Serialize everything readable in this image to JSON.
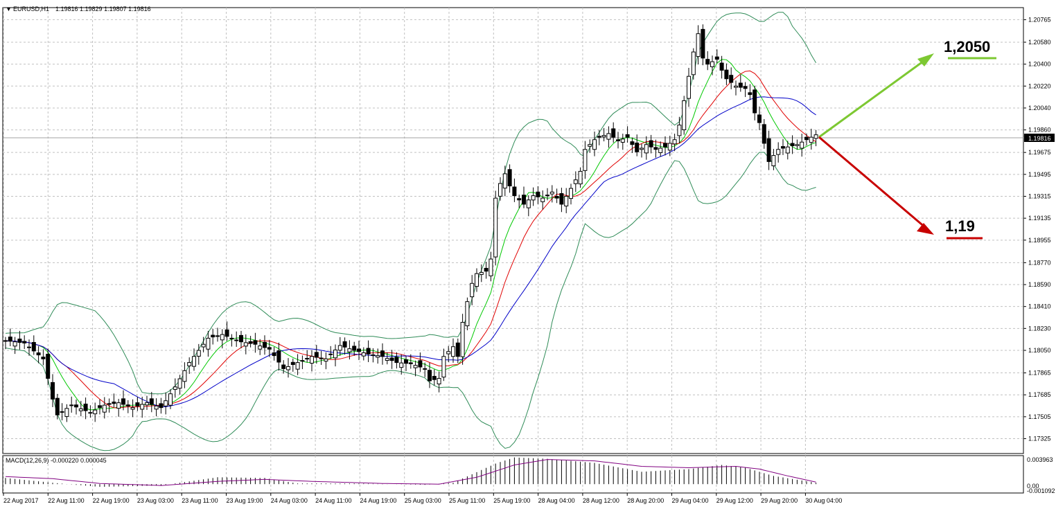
{
  "header": {
    "symbol": "EURUSD,H1",
    "ohlc": "1.19816 1.19829 1.19807 1.19816"
  },
  "current_price": "1.19816",
  "annotations": {
    "up_target": "1,2050",
    "down_target": "1,19"
  },
  "macd": {
    "label": "MACD(12,26,9) -0.000220 0.000045",
    "ticks": [
      "0.003963",
      "0.00",
      "-0.001092"
    ]
  },
  "colors": {
    "candle": "#000000",
    "bollinger": "#2e8b57",
    "ma_green": "#00c800",
    "ma_red": "#e00000",
    "ma_blue": "#0000c8",
    "macd_signal": "#800080",
    "up_arrow": "#7dc832",
    "down_arrow": "#c80000"
  },
  "chart_data": {
    "type": "candlestick",
    "grid": true,
    "ylim": [
      1.1722,
      1.2083
    ],
    "price_ticks": [
      "1.20765",
      "1.20580",
      "1.20400",
      "1.20220",
      "1.20040",
      "1.19860",
      "1.19675",
      "1.19495",
      "1.19315",
      "1.19135",
      "1.18955",
      "1.18770",
      "1.18590",
      "1.18410",
      "1.18230",
      "1.18050",
      "1.17865",
      "1.17685",
      "1.17505",
      "1.17325"
    ],
    "time_ticks": [
      "22 Aug 2017",
      "22 Aug 11:00",
      "22 Aug 19:00",
      "23 Aug 03:00",
      "23 Aug 11:00",
      "23 Aug 19:00",
      "24 Aug 03:00",
      "24 Aug 11:00",
      "24 Aug 19:00",
      "25 Aug 03:00",
      "25 Aug 11:00",
      "25 Aug 19:00",
      "28 Aug 04:00",
      "28 Aug 12:00",
      "28 Aug 20:00",
      "29 Aug 04:00",
      "29 Aug 12:00",
      "29 Aug 20:00",
      "30 Aug 04:00"
    ],
    "anchors": [
      [
        0,
        1.1813
      ],
      [
        4,
        1.1811
      ],
      [
        8,
        1.1798
      ],
      [
        9,
        1.1782
      ],
      [
        10,
        1.1765
      ],
      [
        11,
        1.1752
      ],
      [
        14,
        1.176
      ],
      [
        18,
        1.1754
      ],
      [
        21,
        1.176
      ],
      [
        24,
        1.1762
      ],
      [
        27,
        1.1758
      ],
      [
        30,
        1.1762
      ],
      [
        33,
        1.1758
      ],
      [
        36,
        1.1775
      ],
      [
        39,
        1.1795
      ],
      [
        43,
        1.1815
      ],
      [
        46,
        1.1818
      ],
      [
        50,
        1.1812
      ],
      [
        53,
        1.181
      ],
      [
        56,
        1.1806
      ],
      [
        59,
        1.179
      ],
      [
        62,
        1.1795
      ],
      [
        65,
        1.18
      ],
      [
        68,
        1.1798
      ],
      [
        71,
        1.1809
      ],
      [
        74,
        1.1805
      ],
      [
        77,
        1.1802
      ],
      [
        80,
        1.18
      ],
      [
        83,
        1.1795
      ],
      [
        86,
        1.1794
      ],
      [
        89,
        1.179
      ],
      [
        90,
        1.178
      ],
      [
        92,
        1.1782
      ],
      [
        93,
        1.18
      ],
      [
        95,
        1.1808
      ],
      [
        96,
        1.18
      ],
      [
        97,
        1.1828
      ],
      [
        98,
        1.1845
      ],
      [
        99,
        1.186
      ],
      [
        100,
        1.1868
      ],
      [
        102,
        1.187
      ],
      [
        103,
        1.188
      ],
      [
        104,
        1.193
      ],
      [
        105,
        1.1942
      ],
      [
        106,
        1.195
      ],
      [
        107,
        1.194
      ],
      [
        108,
        1.1932
      ],
      [
        110,
        1.1925
      ],
      [
        112,
        1.1932
      ],
      [
        114,
        1.193
      ],
      [
        116,
        1.1935
      ],
      [
        118,
        1.1925
      ],
      [
        120,
        1.1938
      ],
      [
        122,
        1.1952
      ],
      [
        123,
        1.197
      ],
      [
        125,
        1.1978
      ],
      [
        126,
        1.198
      ],
      [
        128,
        1.1983
      ],
      [
        130,
        1.1977
      ],
      [
        132,
        1.198
      ],
      [
        134,
        1.1968
      ],
      [
        136,
        1.1974
      ],
      [
        138,
        1.197
      ],
      [
        140,
        1.1972
      ],
      [
        142,
        1.1978
      ],
      [
        143,
        1.199
      ],
      [
        144,
        1.201
      ],
      [
        145,
        1.203
      ],
      [
        146,
        1.205
      ],
      [
        147,
        1.2065
      ],
      [
        148,
        1.2045
      ],
      [
        149,
        1.204
      ],
      [
        151,
        1.2044
      ],
      [
        152,
        1.2035
      ],
      [
        153,
        1.2028
      ],
      [
        155,
        1.2022
      ],
      [
        157,
        1.202
      ],
      [
        158,
        1.2015
      ],
      [
        159,
        1.2
      ],
      [
        160,
        1.1992
      ],
      [
        161,
        1.1975
      ],
      [
        162,
        1.196
      ],
      [
        164,
        1.197
      ],
      [
        166,
        1.1972
      ],
      [
        168,
        1.1974
      ],
      [
        170,
        1.1978
      ],
      [
        172,
        1.1982
      ]
    ],
    "macd_histogram_anchors": [
      [
        0,
        0.0009
      ],
      [
        10,
        0.0002
      ],
      [
        20,
        -0.0004
      ],
      [
        33,
        -0.0002
      ],
      [
        45,
        0.001
      ],
      [
        55,
        0.0009
      ],
      [
        62,
        0.0001
      ],
      [
        75,
        0.0001
      ],
      [
        89,
        -0.0001
      ],
      [
        95,
        0.0002
      ],
      [
        104,
        0.003
      ],
      [
        108,
        0.0039
      ],
      [
        115,
        0.0037
      ],
      [
        125,
        0.0031
      ],
      [
        135,
        0.0018
      ],
      [
        145,
        0.0022
      ],
      [
        152,
        0.0028
      ],
      [
        157,
        0.0024
      ],
      [
        163,
        0.0012
      ],
      [
        172,
        0.0002
      ]
    ],
    "macd_signal_anchors": [
      [
        0,
        0.0011
      ],
      [
        10,
        0.0008
      ],
      [
        20,
        0.0001
      ],
      [
        33,
        -0.0002
      ],
      [
        45,
        0.0004
      ],
      [
        55,
        0.0007
      ],
      [
        65,
        0.0004
      ],
      [
        80,
        0.0001
      ],
      [
        92,
        0.0
      ],
      [
        100,
        0.001
      ],
      [
        108,
        0.0028
      ],
      [
        115,
        0.0036
      ],
      [
        125,
        0.0034
      ],
      [
        135,
        0.0026
      ],
      [
        145,
        0.0024
      ],
      [
        155,
        0.0026
      ],
      [
        160,
        0.0022
      ],
      [
        166,
        0.0012
      ],
      [
        172,
        0.0003
      ]
    ]
  }
}
